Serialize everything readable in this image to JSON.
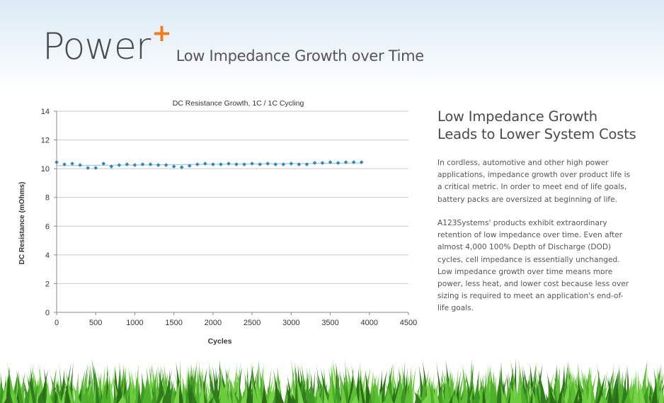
{
  "header": {
    "brand": "Power",
    "brand_plus": "+",
    "subtitle": "Low Impedance Growth over Time"
  },
  "side": {
    "title_line1": "Low Impedance Growth",
    "title_line2": "Leads to Lower System Costs",
    "para1": "In cordless, automotive and other high power applications, impedance growth over product life is a critical metric.  In order to meet end of life goals, battery packs are oversized at beginning of life.",
    "para2": "A123Systems' products exhibit extraordinary retention of low impedance  over time.  Even after almost 4,000 100% Depth of Discharge (DOD) cycles, cell impedance is essentially unchanged. Low impedance growth over time means more power, less heat, and lower cost because less over sizing is required to meet an application's end-of-life goals."
  },
  "colors": {
    "marker": "#2a86c4",
    "trend": "#9ccae6",
    "grid": "#c9c9c9",
    "accent": "#f07b1a"
  },
  "chart_data": {
    "type": "scatter",
    "title": "DC Resistance Growth, 1C / 1C Cycling",
    "xlabel": "Cycles",
    "ylabel": "DC Resistance (mOhms)",
    "xlim": [
      0,
      4500
    ],
    "ylim": [
      0,
      14
    ],
    "xticks": [
      0,
      500,
      1000,
      1500,
      2000,
      2500,
      3000,
      3500,
      4000,
      4500
    ],
    "yticks": [
      0,
      2,
      4,
      6,
      8,
      10,
      12,
      14
    ],
    "grid": "horizontal",
    "trendline": true,
    "series": [
      {
        "x": [
          0,
          100,
          200,
          300,
          400,
          500,
          600,
          700,
          800,
          900,
          1000,
          1100,
          1200,
          1300,
          1400,
          1500,
          1600,
          1700,
          1800,
          1900,
          2000,
          2100,
          2200,
          2300,
          2400,
          2500,
          2600,
          2700,
          2800,
          2900,
          3000,
          3100,
          3200,
          3300,
          3400,
          3500,
          3600,
          3700,
          3800,
          3900
        ],
        "y": [
          10.45,
          10.3,
          10.35,
          10.25,
          10.05,
          10.05,
          10.35,
          10.15,
          10.25,
          10.3,
          10.25,
          10.3,
          10.3,
          10.25,
          10.25,
          10.15,
          10.1,
          10.2,
          10.3,
          10.35,
          10.3,
          10.3,
          10.35,
          10.3,
          10.3,
          10.35,
          10.3,
          10.35,
          10.3,
          10.3,
          10.35,
          10.3,
          10.3,
          10.4,
          10.4,
          10.45,
          10.4,
          10.45,
          10.45,
          10.45
        ]
      }
    ]
  }
}
